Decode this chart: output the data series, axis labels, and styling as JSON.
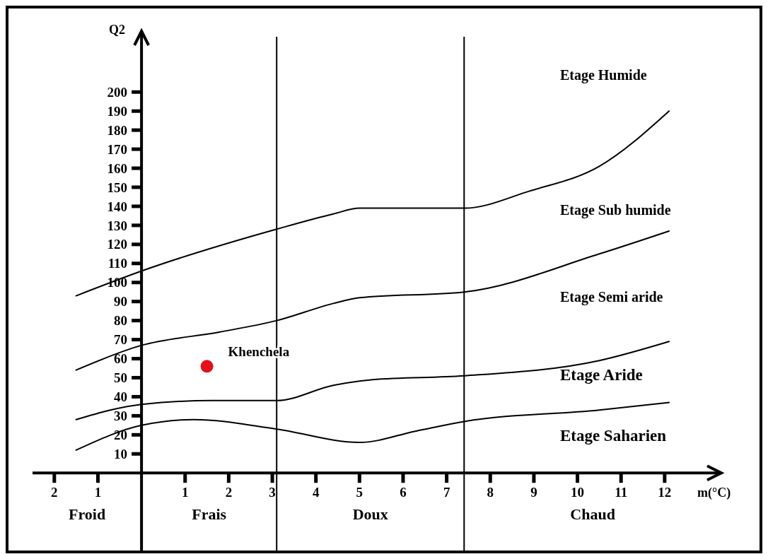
{
  "chart_data": {
    "type": "line",
    "xlabel": "m(°C)",
    "ylabel": "Q2",
    "xlim": [
      -2.5,
      13.3
    ],
    "ylim": [
      -40,
      232
    ],
    "xticks": [
      {
        "value": -2,
        "label": "2"
      },
      {
        "value": -1,
        "label": "1"
      },
      1,
      2,
      3,
      4,
      5,
      6,
      7,
      8,
      9,
      10,
      11,
      12
    ],
    "yticks": [
      10,
      20,
      30,
      40,
      50,
      60,
      70,
      80,
      90,
      100,
      110,
      120,
      130,
      140,
      150,
      160,
      170,
      180,
      190,
      200
    ],
    "grid": false,
    "legend": false,
    "line_style": "solid",
    "series": [
      {
        "color": "#000000",
        "marker": "none",
        "x": [
          -1.5,
          0,
          3.1,
          4.4,
          5,
          7.4,
          8.9,
          10.5,
          12.1
        ],
        "values": [
          93,
          106,
          128,
          136,
          139,
          139,
          148,
          161,
          190
        ]
      },
      {
        "color": "#000000",
        "marker": "none",
        "x": [
          -1.5,
          0,
          1.8,
          3.1,
          4.4,
          5,
          7.4,
          10.5,
          12.1
        ],
        "values": [
          54,
          67,
          74,
          80,
          89,
          92,
          95,
          115,
          127
        ]
      },
      {
        "color": "#000000",
        "marker": "none",
        "x": [
          -1.5,
          0,
          1.6,
          3.1,
          4.4,
          5.3,
          7.4,
          10.5,
          12.1
        ],
        "values": [
          28,
          36,
          38,
          38,
          46,
          49,
          51,
          59,
          69
        ]
      },
      {
        "color": "#000000",
        "marker": "none",
        "x": [
          -1.5,
          0,
          1.2,
          3.1,
          5,
          6.3,
          7.4,
          10.5,
          12.1
        ],
        "values": [
          12,
          25,
          28,
          23,
          16,
          22,
          27,
          33,
          37
        ]
      },
      {
        "type": "scatter",
        "name": "Khenchela",
        "color": "#e3111b",
        "marker": "circle",
        "x": [
          1.5
        ],
        "values": [
          56
        ]
      }
    ],
    "ref_lines": [
      {
        "axis": "x",
        "value": 3.1,
        "color": "#000000"
      },
      {
        "axis": "x",
        "value": 7.4,
        "color": "#000000"
      }
    ],
    "annotations": [
      "Froid",
      "Frais",
      "Doux",
      "Chaud",
      "Etage Humide",
      "Etage Sub humide",
      "Etage Semi aride",
      "Etage Aride",
      "Etage Saharien"
    ]
  }
}
